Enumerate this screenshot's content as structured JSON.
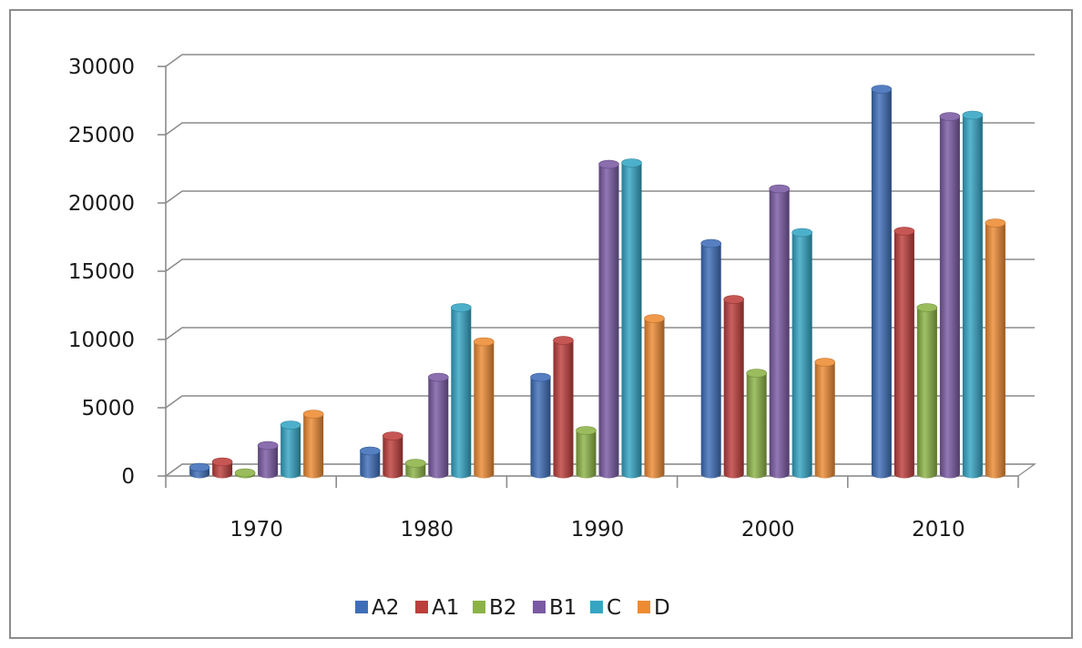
{
  "chart_data": {
    "type": "bar",
    "categories": [
      "1970",
      "1980",
      "1990",
      "2000",
      "2010"
    ],
    "series": [
      {
        "name": "A2",
        "color": "#3f6eb8",
        "values": [
          500,
          1700,
          7100,
          16900,
          28200
        ]
      },
      {
        "name": "A1",
        "color": "#bd3f3c",
        "values": [
          900,
          2800,
          9800,
          12800,
          17800
        ]
      },
      {
        "name": "B2",
        "color": "#8cb347",
        "values": [
          100,
          800,
          3200,
          7400,
          12200
        ]
      },
      {
        "name": "B1",
        "color": "#7a5aa3",
        "values": [
          2100,
          7100,
          22700,
          20900,
          26200
        ]
      },
      {
        "name": "C",
        "color": "#35a5c4",
        "values": [
          3600,
          12200,
          22800,
          17700,
          26300
        ]
      },
      {
        "name": "D",
        "color": "#ed8b33",
        "values": [
          4400,
          9700,
          11400,
          8200,
          18400
        ]
      }
    ],
    "yticks": [
      "0",
      "5000",
      "10000",
      "15000",
      "20000",
      "25000",
      "30000"
    ],
    "ylim": [
      0,
      30000
    ],
    "grid": true,
    "legend_position": "bottom",
    "style": "3d-clustered-column",
    "title": "",
    "xlabel": "",
    "ylabel": ""
  }
}
